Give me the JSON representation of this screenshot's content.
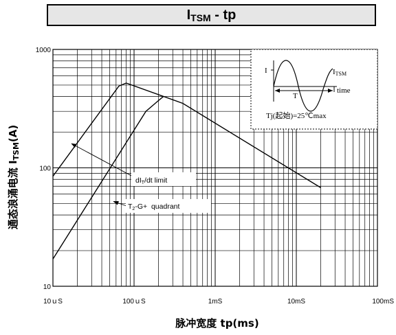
{
  "title": {
    "main": "I",
    "sub": "TSM",
    "rest": " - tp"
  },
  "chart_data": {
    "type": "line",
    "x_scale": "log",
    "y_scale": "log",
    "xlim": [
      0.01,
      100
    ],
    "ylim": [
      10,
      1000
    ],
    "grid": true,
    "x_ticks": [
      {
        "value": 0.01,
        "label": "10ｕS"
      },
      {
        "value": 0.1,
        "label": "100ｕS"
      },
      {
        "value": 1,
        "label": "1mS"
      },
      {
        "value": 10,
        "label": "10mS"
      },
      {
        "value": 100,
        "label": "100mS"
      }
    ],
    "y_ticks": [
      {
        "value": 10,
        "label": "10"
      },
      {
        "value": 100,
        "label": "100"
      },
      {
        "value": 1000,
        "label": "1000"
      }
    ],
    "xlabel": "脉冲宽度 tp(ms)",
    "ylabel": {
      "main": "通态浪涌电流 I",
      "sub": "TSM",
      "end": "(A)"
    },
    "series": [
      {
        "points": [
          [
            0.01,
            85
          ],
          [
            0.065,
            490
          ],
          [
            0.08,
            520
          ],
          [
            0.4,
            350
          ],
          [
            20,
            68
          ]
        ]
      },
      {
        "points": [
          [
            0.01,
            17
          ],
          [
            0.14,
            300
          ],
          [
            0.2,
            370
          ],
          [
            0.23,
            400
          ]
        ]
      }
    ],
    "annotations": [
      {
        "text_main": "dI",
        "text_sub": "T",
        "text_end": "/dt limit",
        "arrow_to": [
          0.017,
          160
        ]
      },
      {
        "text_main": "T",
        "text_sub": "2",
        "text_end": "-G+  quadrant",
        "arrow_to": [
          0.056,
          52
        ]
      }
    ],
    "inset": {
      "label_i": "I",
      "label_itsm_main": "I",
      "label_itsm_sub": "TSM",
      "label_t": "T",
      "label_time": "time",
      "label_tj": "Tj(起始)=25℃max"
    }
  }
}
